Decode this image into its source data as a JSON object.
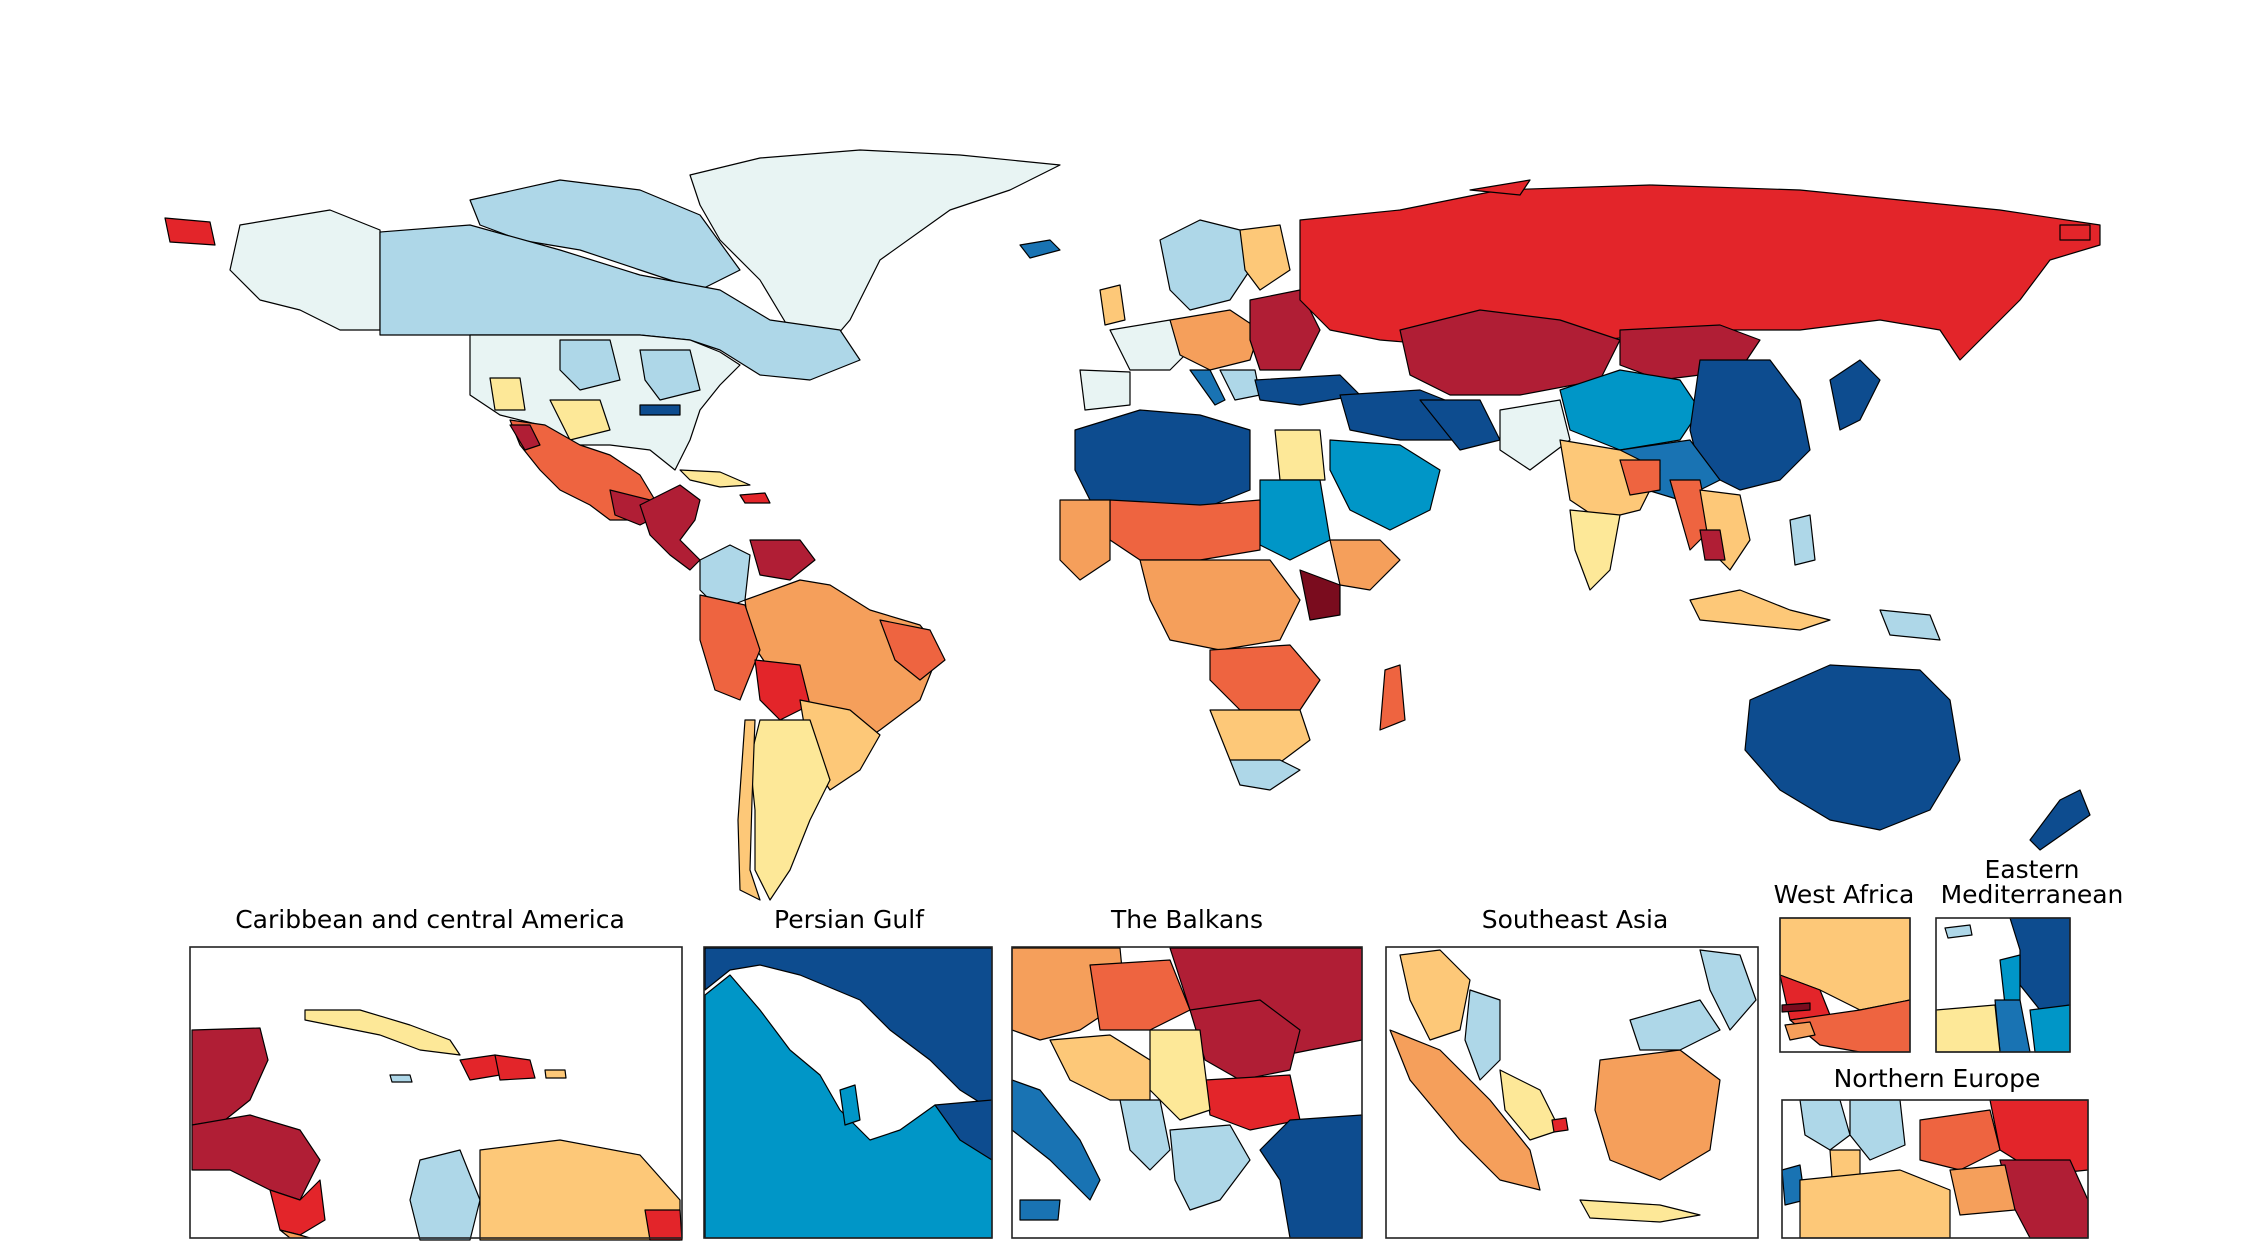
{
  "palette": {
    "darkest_red": "#7a0c1e",
    "dark_red": "#b01e35",
    "red": "#e3252a",
    "red_orange": "#ee6440",
    "orange": "#f59f5b",
    "light_orange": "#fdc878",
    "pale_yellow": "#fde898",
    "pale_cyan": "#e8f4f3",
    "light_blue": "#aed7e8",
    "mid_blue": "#0096c7",
    "blue": "#1973b3",
    "dark_blue": "#0d4c8f",
    "ocean": "#ffffff",
    "border": "#000000"
  },
  "insets": {
    "caribbean": {
      "title": "Caribbean and central America"
    },
    "persian_gulf": {
      "title": "Persian Gulf"
    },
    "balkans": {
      "title": "The Balkans"
    },
    "southeast_asia": {
      "title": "Southeast Asia"
    },
    "west_africa": {
      "title": "West Africa"
    },
    "eastern_med": {
      "title_line1": "Eastern",
      "title_line2": "Mediterranean"
    },
    "northern_europe": {
      "title": "Northern Europe"
    }
  }
}
